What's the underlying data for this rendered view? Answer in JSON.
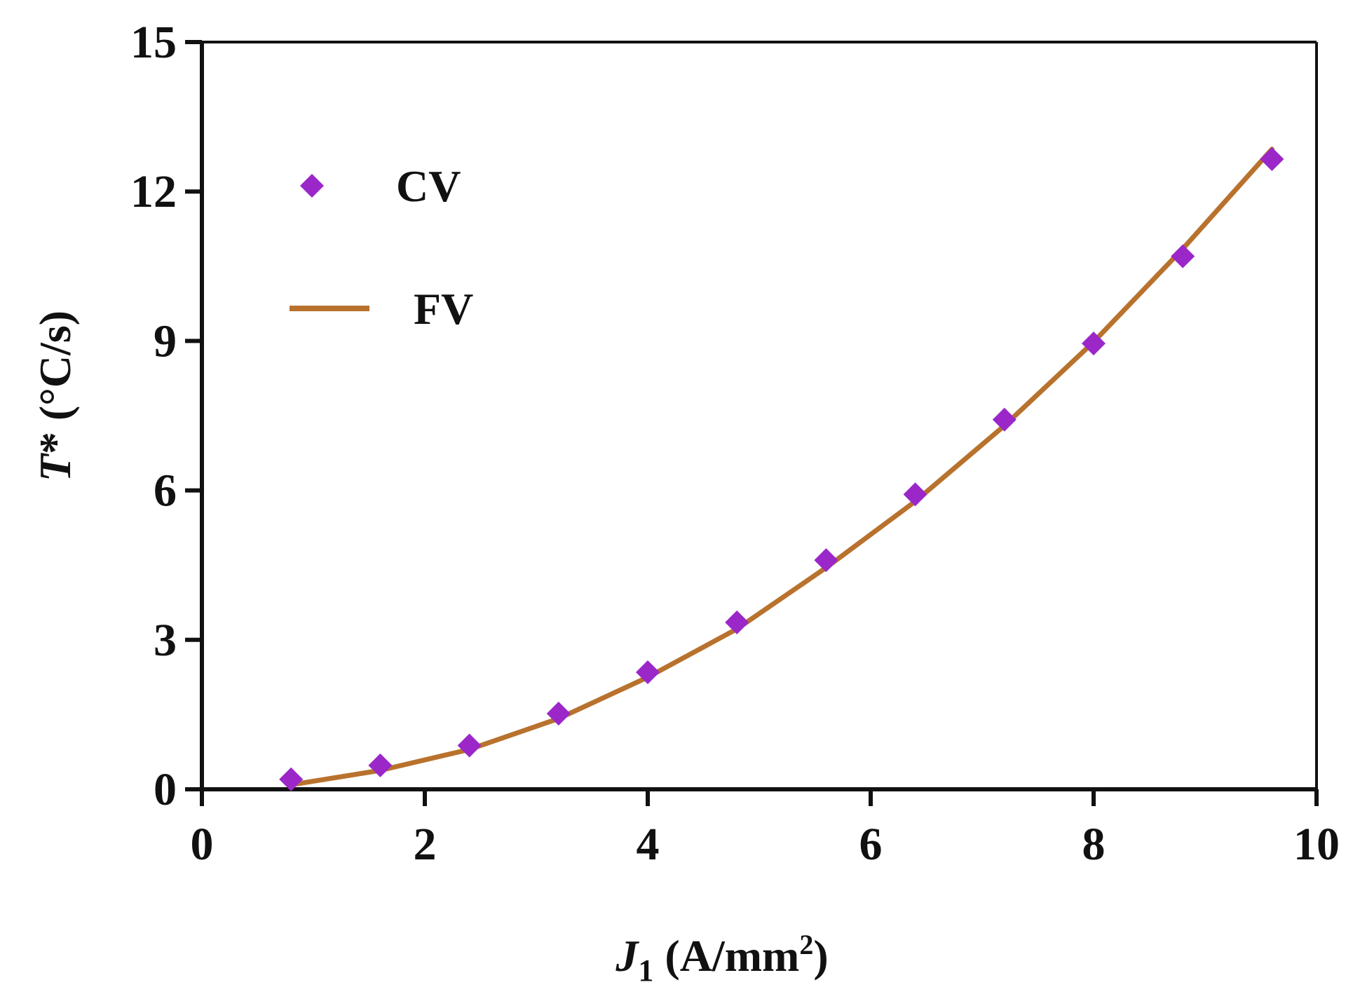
{
  "chart_data": {
    "type": "scatter",
    "x_label": {
      "var": "J",
      "sub": "1",
      "unit_prefix": " (A/mm",
      "sup": "2",
      "unit_suffix": ")"
    },
    "y_label": {
      "var": "T",
      "rest": "* (°C/s)"
    },
    "xlim": [
      0,
      10
    ],
    "ylim": [
      0,
      15
    ],
    "x_ticks": [
      0,
      2,
      4,
      6,
      8,
      10
    ],
    "y_ticks": [
      0,
      3,
      6,
      9,
      12,
      15
    ],
    "grid": false,
    "legend_position": "top-left",
    "series": [
      {
        "name": "CV",
        "kind": "markers",
        "marker": "diamond",
        "color": "#9b27c9",
        "x": [
          0.8,
          1.6,
          2.4,
          3.2,
          4.0,
          4.8,
          5.6,
          6.4,
          7.2,
          8.0,
          8.8,
          9.6
        ],
        "y": [
          0.2,
          0.48,
          0.88,
          1.52,
          2.35,
          3.35,
          4.6,
          5.92,
          7.42,
          8.95,
          10.7,
          12.65
        ]
      },
      {
        "name": "FV",
        "kind": "line",
        "color": "#b8722d",
        "x": [
          0.8,
          1.6,
          2.4,
          3.2,
          4.0,
          4.8,
          5.6,
          6.4,
          7.2,
          8.0,
          8.8,
          9.6
        ],
        "y": [
          0.09,
          0.38,
          0.8,
          1.42,
          2.25,
          3.22,
          4.45,
          5.78,
          7.3,
          8.98,
          10.85,
          12.85
        ]
      }
    ]
  }
}
